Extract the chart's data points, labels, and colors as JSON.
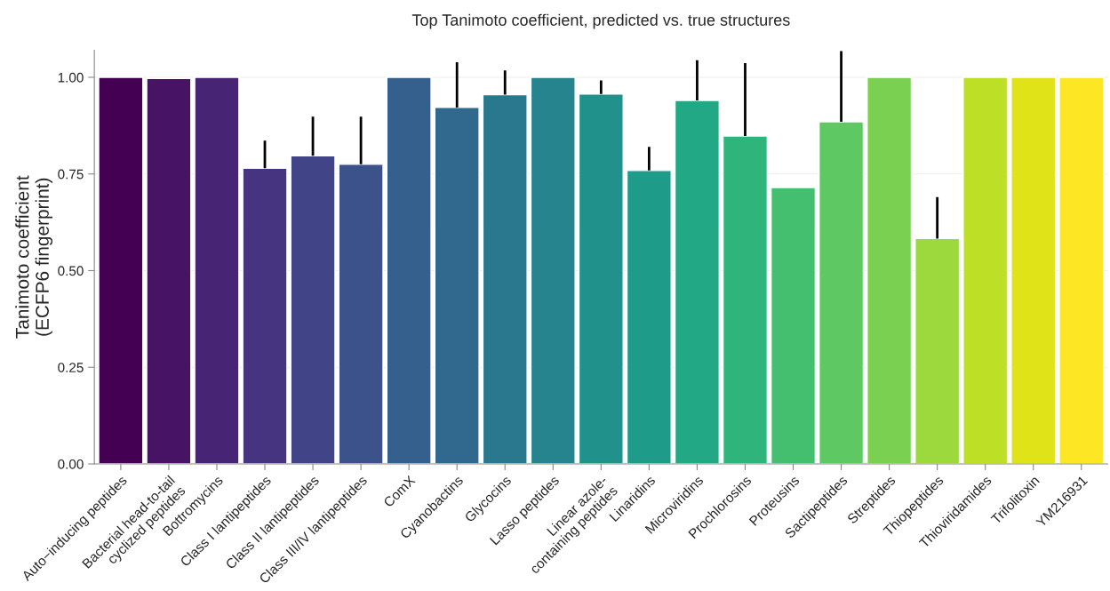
{
  "chart_data": {
    "type": "bar",
    "title": "Top Tanimoto coefficient, predicted vs. true structures",
    "ylabel": "Tanimoto coefficient\n(ECFP6 fingerprint)",
    "categories": [
      "Auto−inducing peptides",
      "Bacterial head-to-tail\ncyclized peptides",
      "Bottromycins",
      "Class I lantipeptides",
      "Class II lantipeptides",
      "Class III/IV lantipeptides",
      "ComX",
      "Cyanobactins",
      "Glycocins",
      "Lasso peptides",
      "Linear azole-\ncontaining peptides",
      "Linaridins",
      "Microviridins",
      "Prochlorosins",
      "Proteusins",
      "Sactipeptides",
      "Streptides",
      "Thiopeptides",
      "Thioviridamides",
      "Trifolitoxin",
      "YM216931"
    ],
    "values": [
      1.0,
      0.997,
      1.0,
      0.765,
      0.797,
      0.775,
      1.0,
      0.922,
      0.955,
      1.0,
      0.957,
      0.759,
      0.94,
      0.848,
      0.715,
      0.885,
      1.0,
      0.583,
      1.0,
      1.0,
      1.0
    ],
    "errors": [
      null,
      null,
      null,
      [
        0.765,
        0.836
      ],
      [
        0.797,
        0.898
      ],
      [
        0.775,
        0.898
      ],
      null,
      [
        0.922,
        1.039
      ],
      [
        0.955,
        1.018
      ],
      null,
      [
        0.957,
        0.992
      ],
      [
        0.759,
        0.82
      ],
      [
        0.94,
        1.044
      ],
      [
        0.848,
        1.037
      ],
      null,
      [
        0.885,
        1.068
      ],
      null,
      [
        0.583,
        0.69
      ],
      null,
      null,
      null
    ],
    "colors": [
      "#440154",
      "#471365",
      "#482475",
      "#463480",
      "#414487",
      "#3b528b",
      "#355f8d",
      "#31688e",
      "#2a788e",
      "#25848e",
      "#21918c",
      "#1e9c89",
      "#22a884",
      "#2fb47c",
      "#44bf70",
      "#5ec962",
      "#7ad151",
      "#9bd93c",
      "#bddf26",
      "#dfe318",
      "#fde725"
    ],
    "ylim": [
      0,
      1.07
    ],
    "yticks": [
      {
        "value": 0,
        "label": "0.00"
      },
      {
        "value": 0.25,
        "label": "0.25"
      },
      {
        "value": 0.5,
        "label": "0.50"
      },
      {
        "value": 0.75,
        "label": "0.75"
      },
      {
        "value": 1,
        "label": "1.00"
      }
    ],
    "grid": "y",
    "legend": false
  }
}
